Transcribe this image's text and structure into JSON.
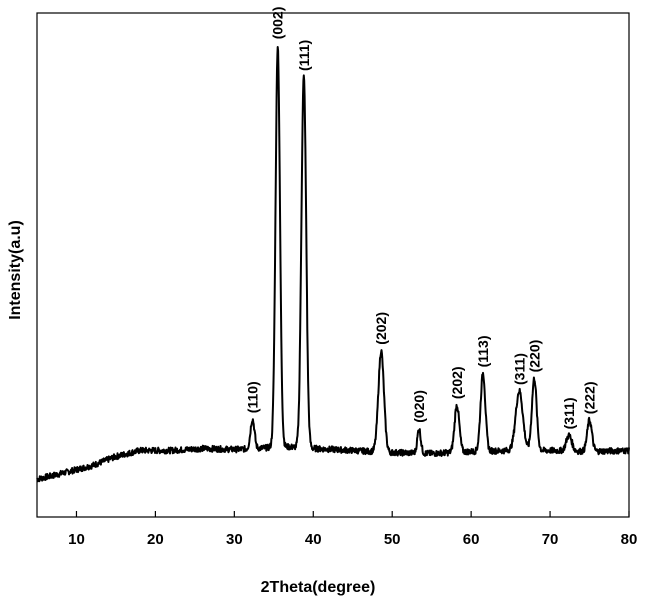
{
  "chart_data": {
    "type": "line",
    "xlabel": "2Theta(degree)",
    "ylabel": "Intensity(a.u)",
    "xlim": [
      5,
      80
    ],
    "ylim": [
      0,
      100
    ],
    "xticks": [
      10,
      20,
      30,
      40,
      50,
      60,
      70,
      80
    ],
    "grid": false,
    "legend": "none",
    "line_color": "#000000",
    "baseline": [
      [
        5,
        7.5
      ],
      [
        8,
        8.6
      ],
      [
        12,
        10.2
      ],
      [
        15,
        12.0
      ],
      [
        18,
        13.2
      ],
      [
        22,
        13.2
      ],
      [
        26,
        13.6
      ],
      [
        30,
        13.4
      ],
      [
        33,
        13.6
      ],
      [
        36,
        14.0
      ],
      [
        40,
        13.6
      ],
      [
        45,
        13.2
      ],
      [
        50,
        12.8
      ],
      [
        55,
        12.6
      ],
      [
        60,
        13.0
      ],
      [
        65,
        13.2
      ],
      [
        70,
        13.2
      ],
      [
        75,
        13.0
      ],
      [
        80,
        13.2
      ]
    ],
    "peaks": [
      {
        "label": "(110)",
        "x": 32.3,
        "y": 19.4
      },
      {
        "label": "(002)",
        "x": 35.5,
        "y": 93.6
      },
      {
        "label": "(111)",
        "x": 38.8,
        "y": 87.3
      },
      {
        "label": "(202)",
        "x": 48.6,
        "y": 33.0
      },
      {
        "label": "(020)",
        "x": 53.4,
        "y": 17.5
      },
      {
        "label": "(202)",
        "x": 58.2,
        "y": 22.2
      },
      {
        "label": "(113)",
        "x": 61.5,
        "y": 28.5
      },
      {
        "label": "(311)",
        "x": 66.1,
        "y": 25.0
      },
      {
        "label": "(220)",
        "x": 68.0,
        "y": 27.5
      },
      {
        "label": "(311)",
        "x": 72.4,
        "y": 16.2
      },
      {
        "label": "(222)",
        "x": 75.0,
        "y": 19.2
      }
    ]
  }
}
